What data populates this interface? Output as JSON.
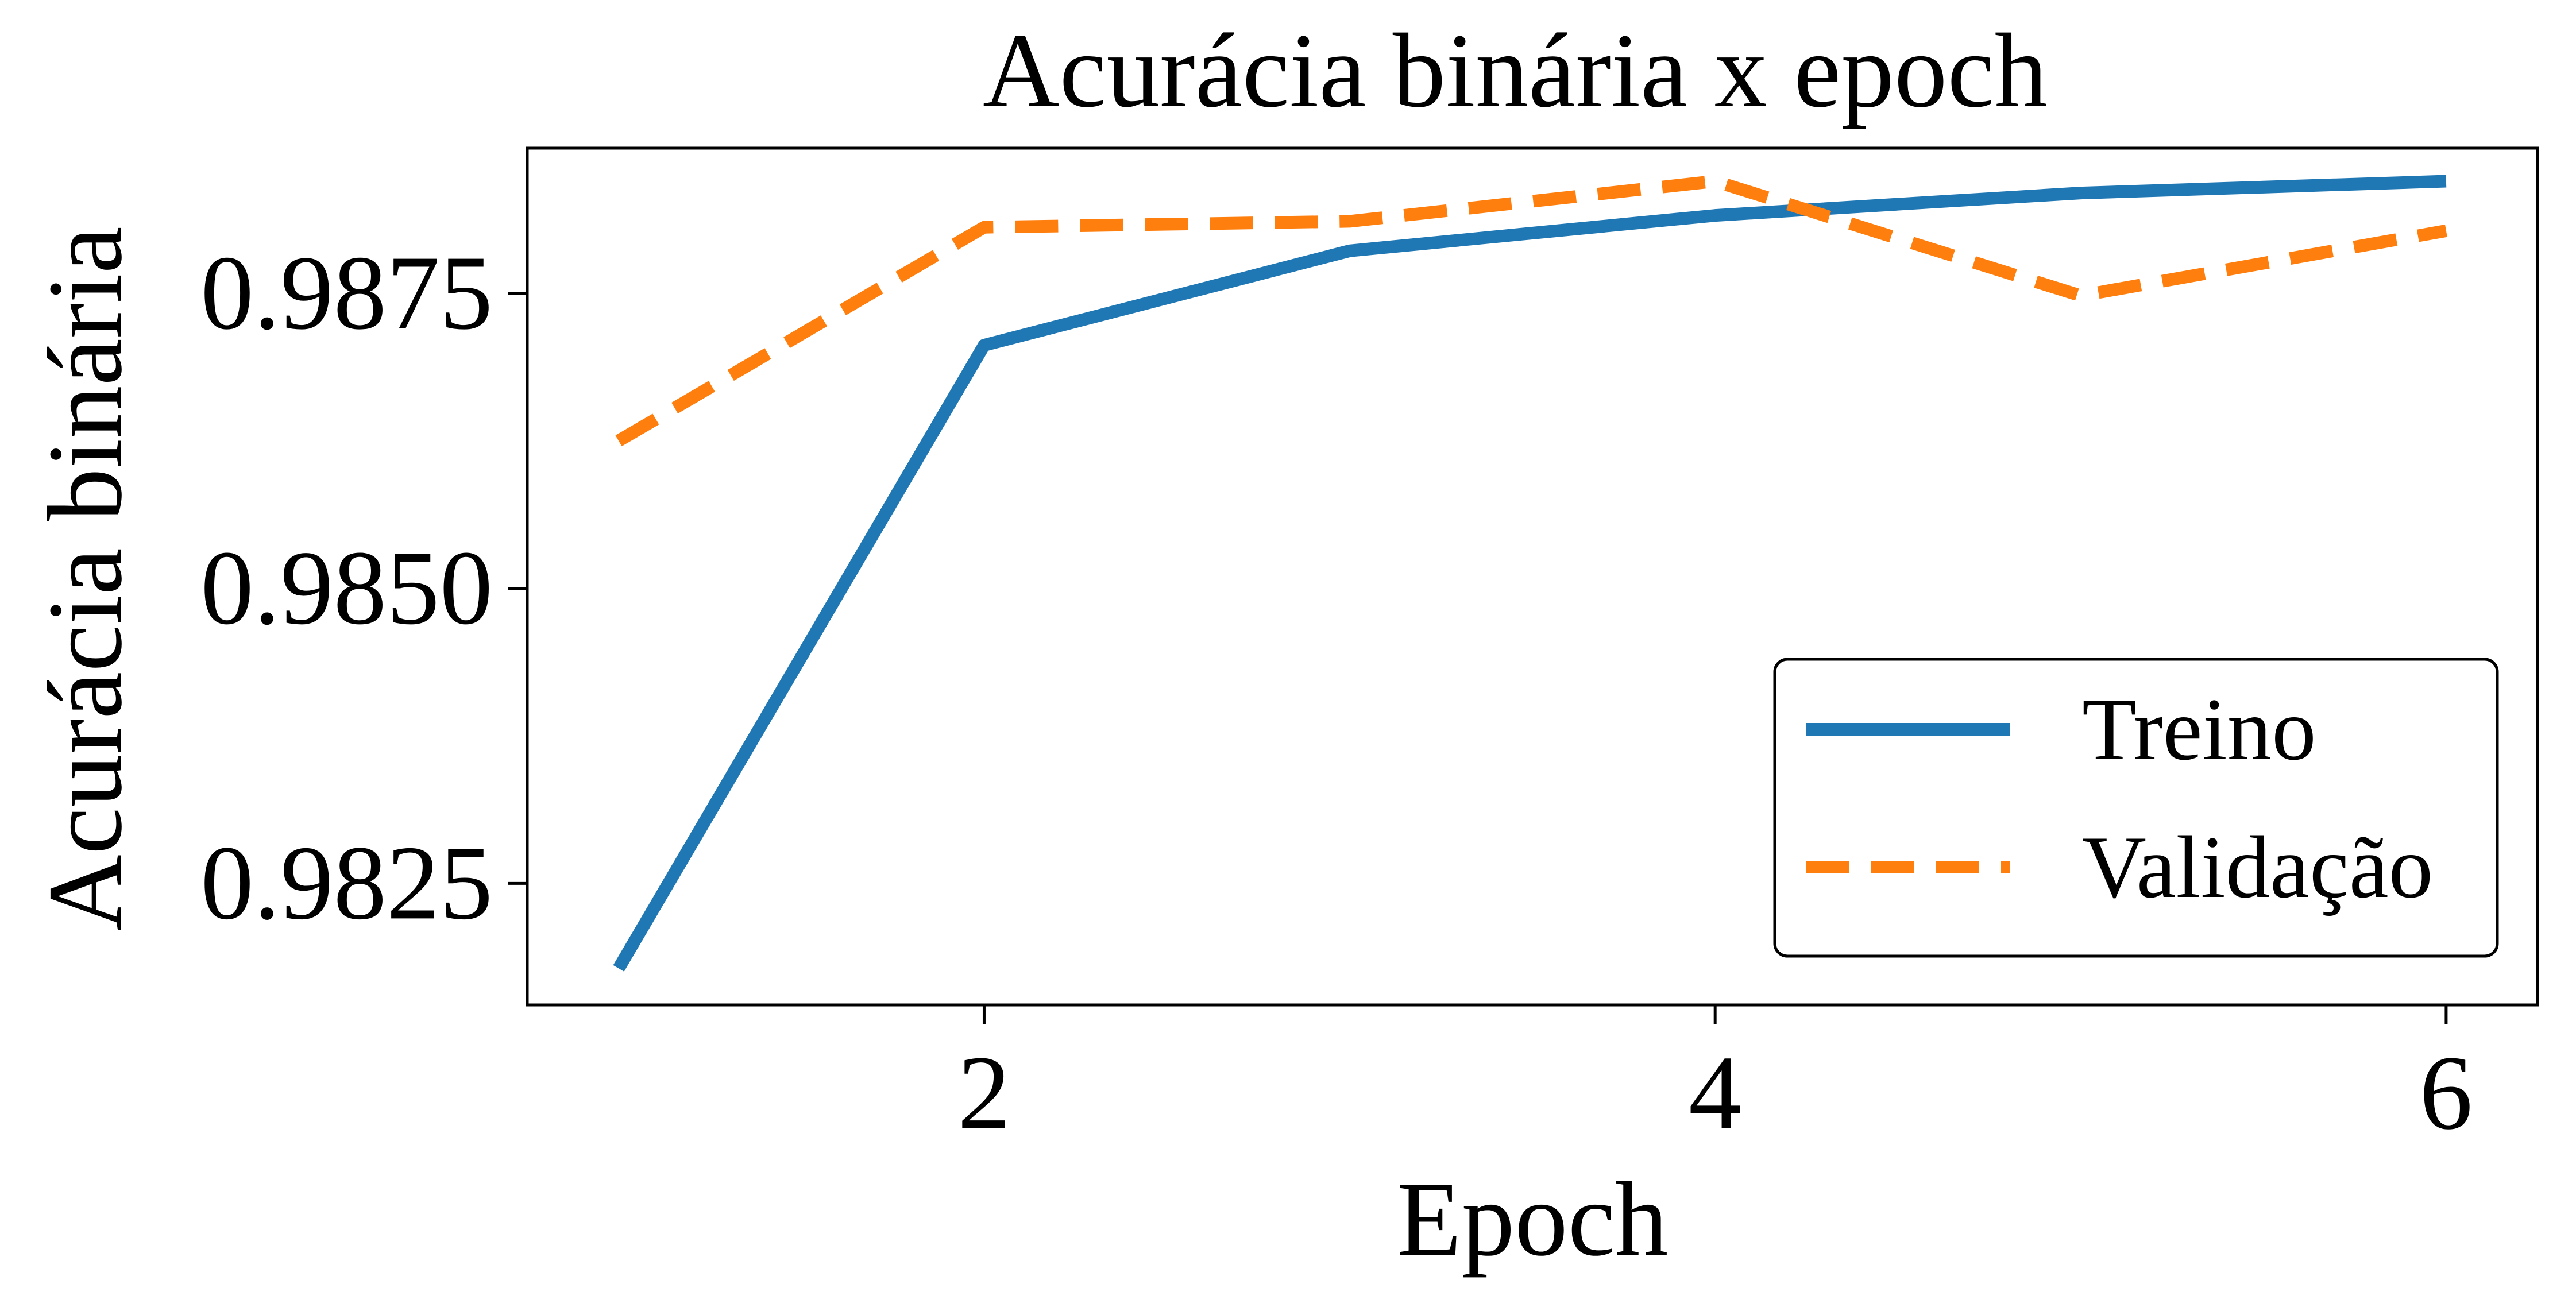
{
  "chart_data": {
    "type": "line",
    "title": "Acurácia binária x epoch",
    "xlabel": "Epoch",
    "ylabel": "Acurácia binária",
    "x": [
      1,
      2,
      3,
      4,
      5,
      6
    ],
    "xticks": [
      2,
      4,
      6
    ],
    "xtick_labels": [
      "2",
      "4",
      "6"
    ],
    "yticks": [
      0.9825,
      0.985,
      0.9875
    ],
    "ytick_labels": [
      "0.9825",
      "0.9850",
      "0.9875"
    ],
    "xlim": [
      0.75,
      6.25
    ],
    "ylim": [
      0.98147,
      0.98873
    ],
    "grid": false,
    "legend_position": "lower-right",
    "series": [
      {
        "name": "Treino",
        "values": [
          0.98178,
          0.98706,
          0.98786,
          0.98816,
          0.98835,
          0.98845
        ],
        "color": "#1f77b4",
        "style": "solid"
      },
      {
        "name": "Validação",
        "values": [
          0.98625,
          0.98806,
          0.98811,
          0.98845,
          0.98748,
          0.98803
        ],
        "color": "#ff7f0e",
        "style": "dashed"
      }
    ]
  }
}
